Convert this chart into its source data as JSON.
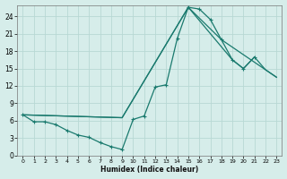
{
  "xlabel": "Humidex (Indice chaleur)",
  "bg_color": "#d6edea",
  "grid_color": "#b8d8d4",
  "line_color": "#1a7a6e",
  "xlim": [
    -0.5,
    23.5
  ],
  "ylim": [
    0,
    26
  ],
  "xticks": [
    0,
    1,
    2,
    3,
    4,
    5,
    6,
    7,
    8,
    9,
    10,
    11,
    12,
    13,
    14,
    15,
    16,
    17,
    18,
    19,
    20,
    21,
    22,
    23
  ],
  "yticks": [
    0,
    3,
    6,
    9,
    12,
    15,
    18,
    21,
    24
  ],
  "line1_x": [
    0,
    1,
    2,
    3,
    4,
    5,
    6,
    7,
    8,
    9,
    10,
    11,
    12,
    13,
    14,
    15,
    16,
    17,
    18,
    19,
    20,
    21
  ],
  "line1_y": [
    7.0,
    5.8,
    5.8,
    5.3,
    4.3,
    3.5,
    3.1,
    2.2,
    1.5,
    1.0,
    6.2,
    6.8,
    11.8,
    12.2,
    20.2,
    25.6,
    25.3,
    23.5,
    20.0,
    16.5,
    15.0,
    17.0
  ],
  "line2_x": [
    0,
    9,
    15,
    19,
    20,
    21,
    22,
    23
  ],
  "line2_y": [
    7.0,
    6.5,
    25.6,
    16.5,
    15.0,
    17.0,
    14.8,
    13.5
  ],
  "line3_x": [
    0,
    9,
    15,
    18,
    23
  ],
  "line3_y": [
    7.0,
    6.5,
    25.6,
    20.0,
    13.5
  ]
}
